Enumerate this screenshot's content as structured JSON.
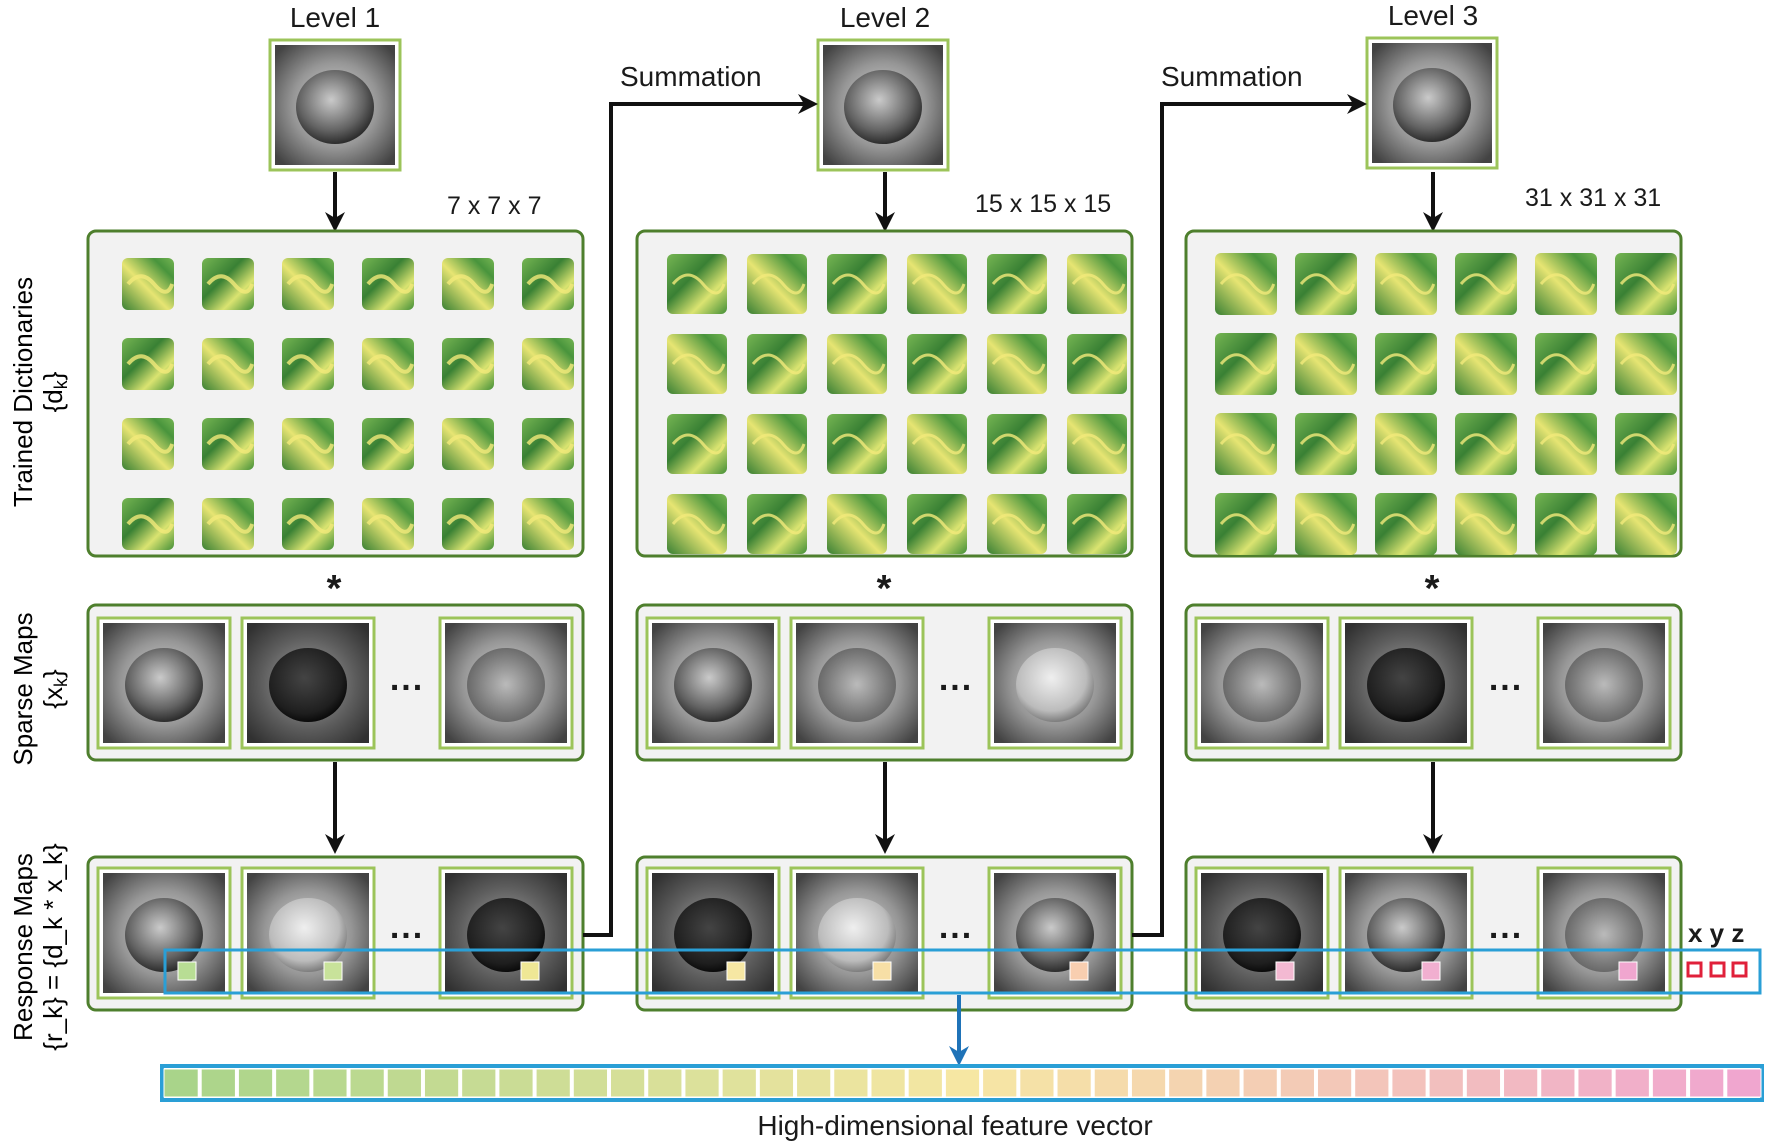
{
  "levels": [
    {
      "title": "Level 1",
      "dict_size": "7 x 7 x 7"
    },
    {
      "title": "Level 2",
      "dict_size": "15 x 15 x 15"
    },
    {
      "title": "Level 3",
      "dict_size": "31 x 31 x 31"
    }
  ],
  "summation_label": "Summation",
  "operator_symbol": "*",
  "ellipsis": "...",
  "coord_label": "x y z",
  "rows": {
    "dictionaries": {
      "title": "Trained Dictionaries",
      "formula_open": "{d",
      "formula_sub": "k",
      "formula_close": "}"
    },
    "sparse": {
      "title": "Sparse Maps",
      "formula_open": "{x",
      "formula_sub": "k",
      "formula_close": "}"
    },
    "response": {
      "title": "Response Maps",
      "formula": "{r_k} = {d_k * x_k}"
    }
  },
  "footer": "High-dimensional feature vector",
  "colors": {
    "panel_border": "#4e7f2d",
    "thumb_border": "#9cc45a",
    "highlight": "#2a9fd6",
    "arrow": "#111111",
    "gradient_start": "#a9d48a",
    "gradient_mid": "#f6e7a3",
    "gradient_end": "#f0a6cf"
  }
}
